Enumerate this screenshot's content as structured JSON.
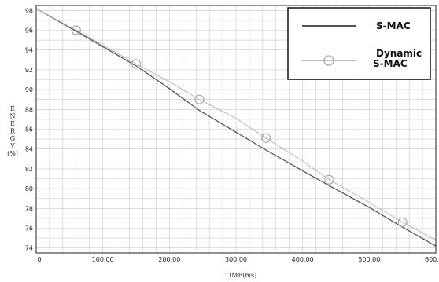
{
  "chart_data": {
    "type": "line",
    "xlabel": "TIME(ms)",
    "ylabel_lines": [
      "E",
      "N",
      "E",
      "R",
      "G",
      "Y",
      "(%)"
    ],
    "xlim": [
      0,
      600
    ],
    "ylim": [
      73.5,
      98.5
    ],
    "x_ticks": [
      0,
      100,
      200,
      300,
      400,
      500,
      600
    ],
    "x_tick_labels": [
      "0",
      "100,00",
      "200,00",
      "300,00",
      "400,00",
      "500,00",
      "600,00"
    ],
    "y_ticks": [
      74,
      76,
      78,
      80,
      82,
      84,
      86,
      88,
      90,
      92,
      94,
      96,
      98
    ],
    "y_tick_labels": [
      "74",
      "76",
      "78",
      "80",
      "82",
      "84",
      "86",
      "88",
      "90",
      "92",
      "94",
      "96",
      "98"
    ],
    "grid": true,
    "legend_position": "top-right",
    "series": [
      {
        "name": "S-MAC",
        "color": "#555555",
        "marker": "none",
        "x": [
          0,
          60,
          150,
          200,
          245,
          300,
          345,
          400,
          440,
          500,
          550,
          600
        ],
        "y": [
          98.2,
          95.9,
          92.4,
          90.1,
          87.9,
          85.7,
          83.9,
          81.8,
          80.3,
          78.1,
          76.1,
          74.2
        ]
      },
      {
        "name": "Dynamic\nS-MAC",
        "color": "#bbbbbb",
        "marker": "circle",
        "x": [
          0,
          60,
          150,
          200,
          245,
          300,
          345,
          400,
          440,
          500,
          550,
          600
        ],
        "y": [
          98.2,
          96.0,
          92.6,
          90.8,
          89.0,
          87.1,
          85.1,
          82.8,
          80.9,
          78.6,
          76.6,
          74.8
        ],
        "marker_x": [
          60,
          150,
          245,
          345,
          440,
          550
        ],
        "marker_y": [
          96.0,
          92.6,
          89.0,
          85.1,
          80.9,
          76.6
        ]
      }
    ]
  }
}
